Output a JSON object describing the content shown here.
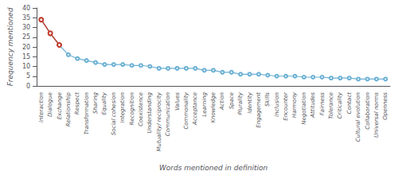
{
  "chart_data": {
    "type": "line",
    "categories": [
      "Interaction",
      "Dialogue",
      "Exchange",
      "Relationship",
      "Respect",
      "Transformation",
      "Sharing",
      "Equality",
      "Social cohesion",
      "Integration",
      "Recognition",
      "Coexistence",
      "Understanding",
      "Mutuality/ reciprocity",
      "Communication",
      "Values",
      "Commonality",
      "Acceptance",
      "Learning",
      "Knowledge",
      "Action",
      "Space",
      "Plurality",
      "Identity",
      "Engagement",
      "Skills",
      "Inclusion",
      "Encounter",
      "Harmony",
      "Negotiation",
      "Attitudes",
      "Fairness",
      "Tolerance",
      "Criticality",
      "Contact",
      "Cultural evolution",
      "Collaboration",
      "Universal norms",
      "Openness"
    ],
    "values": [
      34,
      27,
      21,
      16,
      14,
      13,
      12,
      11,
      11,
      11,
      10.5,
      10.5,
      10,
      9,
      9,
      9,
      9,
      9,
      8,
      8,
      7,
      7,
      6,
      6,
      6,
      5.5,
      5,
      5,
      5,
      4.5,
      4.5,
      4.5,
      4,
      4,
      4,
      3.5,
      3.5,
      3.5,
      3.5
    ],
    "colors": [
      "#C0392B",
      "#C0392B",
      "#C0392B",
      "#6AB0D4",
      "#6AB0D4",
      "#6AB0D4",
      "#6AB0D4",
      "#6AB0D4",
      "#6AB0D4",
      "#6AB0D4",
      "#6AB0D4",
      "#6AB0D4",
      "#6AB0D4",
      "#6AB0D4",
      "#6AB0D4",
      "#6AB0D4",
      "#6AB0D4",
      "#6AB0D4",
      "#6AB0D4",
      "#6AB0D4",
      "#6AB0D4",
      "#6AB0D4",
      "#6AB0D4",
      "#6AB0D4",
      "#6AB0D4",
      "#6AB0D4",
      "#6AB0D4",
      "#6AB0D4",
      "#6AB0D4",
      "#6AB0D4",
      "#6AB0D4",
      "#6AB0D4",
      "#6AB0D4",
      "#6AB0D4",
      "#6AB0D4",
      "#6AB0D4",
      "#6AB0D4",
      "#6AB0D4",
      "#6AB0D4"
    ],
    "xlabel": "Words mentioned in definition",
    "ylabel": "Frequency mentioned",
    "ylim": [
      0,
      40
    ],
    "yticks": [
      0,
      5,
      10,
      15,
      20,
      25,
      30,
      35,
      40
    ],
    "grid": false
  }
}
